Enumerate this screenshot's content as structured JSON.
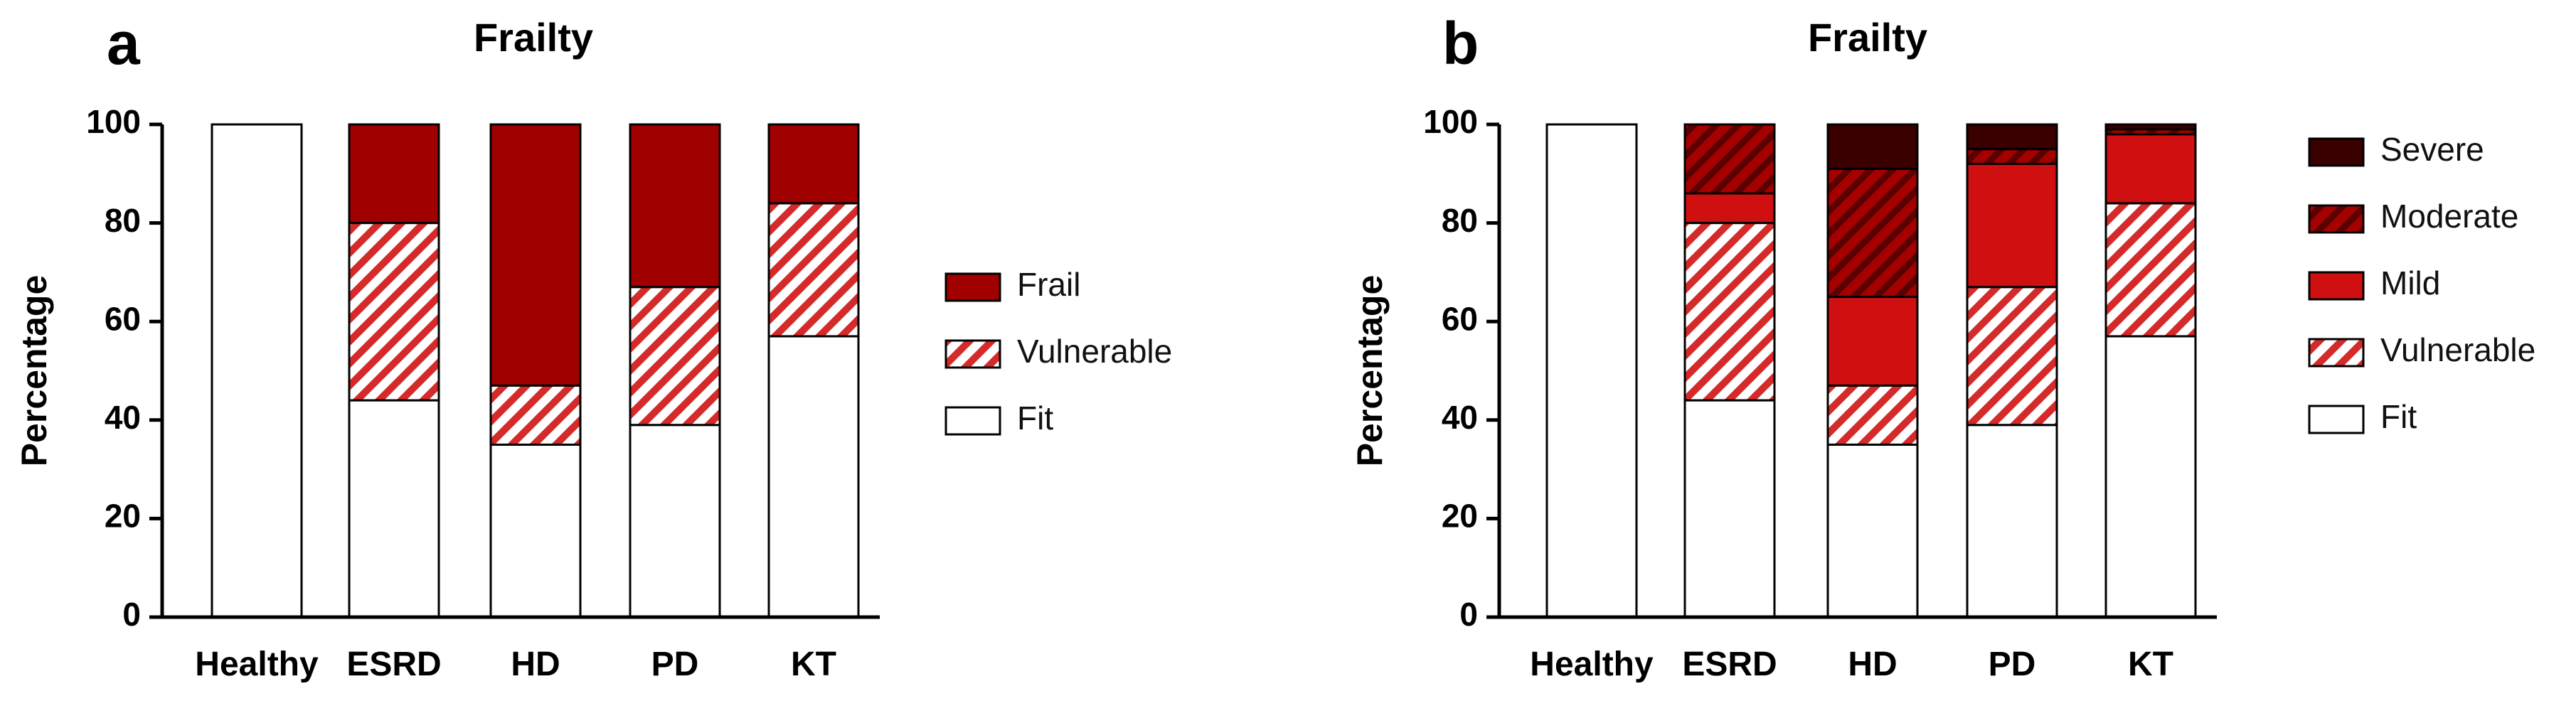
{
  "colors": {
    "fit": "#ffffff",
    "vulnerable_stripe": "#d42a2a",
    "frail": "#a00000",
    "mild": "#d01010",
    "moderate_base": "#a50000",
    "moderate_stripe": "#5a0000",
    "severe": "#3a0000",
    "axis": "#000000"
  },
  "chart_data": [
    {
      "panel_letter": "a",
      "type": "bar",
      "stacked": true,
      "title": "Frailty",
      "xlabel": "",
      "ylabel": "Percentage",
      "ylim": [
        0,
        100
      ],
      "yticks": [
        0,
        20,
        40,
        60,
        80,
        100
      ],
      "categories": [
        "Healthy",
        "ESRD",
        "HD",
        "PD",
        "KT"
      ],
      "series": [
        {
          "name": "Fit",
          "key": "fit",
          "values": [
            100,
            44,
            35,
            39,
            57
          ]
        },
        {
          "name": "Vulnerable",
          "key": "vulnerable",
          "values": [
            0,
            36,
            12,
            28,
            27
          ]
        },
        {
          "name": "Frail",
          "key": "frail",
          "values": [
            0,
            20,
            53,
            33,
            16
          ]
        }
      ],
      "legend_position": "right"
    },
    {
      "panel_letter": "b",
      "type": "bar",
      "stacked": true,
      "title": "Frailty",
      "xlabel": "",
      "ylabel": "Percentage",
      "ylim": [
        0,
        100
      ],
      "yticks": [
        0,
        20,
        40,
        60,
        80,
        100
      ],
      "categories": [
        "Healthy",
        "ESRD",
        "HD",
        "PD",
        "KT"
      ],
      "series": [
        {
          "name": "Fit",
          "key": "fit",
          "values": [
            100,
            44,
            35,
            39,
            57
          ]
        },
        {
          "name": "Vulnerable",
          "key": "vulnerable",
          "values": [
            0,
            36,
            12,
            28,
            27
          ]
        },
        {
          "name": "Mild",
          "key": "mild",
          "values": [
            0,
            6,
            18,
            25,
            14
          ]
        },
        {
          "name": "Moderate",
          "key": "moderate",
          "values": [
            0,
            14,
            26,
            3,
            1
          ]
        },
        {
          "name": "Severe",
          "key": "severe",
          "values": [
            0,
            0,
            9,
            5,
            1
          ]
        }
      ],
      "legend_position": "right"
    }
  ]
}
